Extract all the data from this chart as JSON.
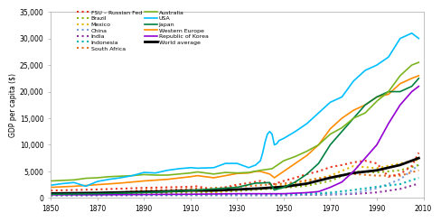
{
  "title": "",
  "ylabel": "GDP per capita ($)",
  "xlabel": "",
  "xlim": [
    1850,
    2010
  ],
  "ylim": [
    0,
    35000
  ],
  "yticks": [
    0,
    5000,
    10000,
    15000,
    20000,
    25000,
    30000,
    35000
  ],
  "xticks": [
    1850,
    1870,
    1890,
    1910,
    1930,
    1950,
    1970,
    1990,
    2010
  ],
  "background_color": "#ffffff",
  "series": {
    "Australia": {
      "color": "#7ab520",
      "style": "solid",
      "lw": 1.2,
      "years": [
        1850,
        1855,
        1860,
        1865,
        1870,
        1875,
        1880,
        1885,
        1890,
        1895,
        1900,
        1905,
        1910,
        1913,
        1920,
        1925,
        1930,
        1935,
        1940,
        1945,
        1950,
        1955,
        1960,
        1965,
        1970,
        1975,
        1980,
        1985,
        1990,
        1995,
        2000,
        2005,
        2008
      ],
      "values": [
        3200,
        3300,
        3400,
        3700,
        3800,
        4000,
        4100,
        4200,
        4400,
        4300,
        4300,
        4500,
        4700,
        4900,
        4500,
        4800,
        4700,
        4800,
        5200,
        5500,
        7000,
        7800,
        8800,
        10000,
        12000,
        13200,
        15000,
        16000,
        18200,
        20000,
        23000,
        25000,
        25500
      ]
    },
    "USA": {
      "color": "#00bfff",
      "style": "solid",
      "lw": 1.2,
      "years": [
        1850,
        1855,
        1860,
        1865,
        1870,
        1875,
        1880,
        1885,
        1890,
        1895,
        1900,
        1905,
        1910,
        1913,
        1920,
        1925,
        1930,
        1935,
        1938,
        1940,
        1941,
        1942,
        1943,
        1944,
        1945,
        1946,
        1947,
        1948,
        1950,
        1955,
        1960,
        1965,
        1970,
        1975,
        1980,
        1985,
        1990,
        1995,
        2000,
        2005,
        2008
      ],
      "values": [
        2400,
        2700,
        2900,
        2200,
        3100,
        3500,
        3800,
        4200,
        4800,
        4700,
        5200,
        5500,
        5700,
        5600,
        5700,
        6500,
        6500,
        5700,
        6200,
        7000,
        8500,
        10500,
        12000,
        12500,
        12000,
        10000,
        10200,
        10800,
        11200,
        12500,
        14000,
        16000,
        18000,
        19000,
        22000,
        24000,
        25000,
        26500,
        30000,
        31000,
        30000
      ]
    },
    "Japan": {
      "color": "#008040",
      "style": "solid",
      "lw": 1.2,
      "years": [
        1850,
        1860,
        1870,
        1880,
        1890,
        1900,
        1910,
        1920,
        1930,
        1938,
        1940,
        1944,
        1946,
        1950,
        1955,
        1960,
        1965,
        1970,
        1975,
        1980,
        1985,
        1990,
        1995,
        2000,
        2005,
        2008
      ],
      "values": [
        700,
        750,
        800,
        900,
        1000,
        1200,
        1400,
        1700,
        2000,
        2800,
        2800,
        2900,
        1500,
        2000,
        3000,
        4500,
        6500,
        10000,
        12500,
        15000,
        17500,
        19000,
        20000,
        20000,
        21000,
        22500
      ]
    },
    "Western Europe": {
      "color": "#ff8c00",
      "style": "solid",
      "lw": 1.2,
      "years": [
        1850,
        1860,
        1870,
        1880,
        1890,
        1900,
        1910,
        1913,
        1920,
        1925,
        1930,
        1935,
        1938,
        1940,
        1944,
        1946,
        1950,
        1955,
        1960,
        1965,
        1970,
        1975,
        1980,
        1985,
        1990,
        1995,
        2000,
        2005,
        2008
      ],
      "values": [
        2000,
        2200,
        2500,
        2800,
        3200,
        3500,
        4000,
        4200,
        3800,
        4200,
        4600,
        4700,
        5000,
        5000,
        4500,
        3800,
        5000,
        6500,
        8000,
        10000,
        13000,
        15000,
        16500,
        17500,
        19000,
        19500,
        21500,
        22500,
        23000
      ]
    },
    "Republic of Korea": {
      "color": "#9400d3",
      "style": "solid",
      "lw": 1.2,
      "years": [
        1850,
        1870,
        1890,
        1910,
        1930,
        1950,
        1960,
        1965,
        1970,
        1975,
        1980,
        1985,
        1990,
        1995,
        2000,
        2005,
        2008
      ],
      "values": [
        600,
        600,
        650,
        700,
        800,
        800,
        1000,
        1200,
        2000,
        3000,
        5000,
        7500,
        10000,
        14000,
        17500,
        20000,
        21000
      ]
    },
    "World average": {
      "color": "#000000",
      "style": "solid",
      "lw": 2.0,
      "years": [
        1850,
        1860,
        1870,
        1880,
        1890,
        1900,
        1910,
        1920,
        1930,
        1940,
        1950,
        1960,
        1970,
        1980,
        1990,
        2000,
        2008
      ],
      "values": [
        850,
        900,
        950,
        1050,
        1150,
        1250,
        1400,
        1400,
        1600,
        1800,
        2100,
        2700,
        3800,
        4700,
        5200,
        6200,
        7500
      ]
    },
    "FSU - Russian Fed": {
      "color": "#e8341c",
      "style": "dotted",
      "lw": 1.5,
      "years": [
        1850,
        1860,
        1870,
        1880,
        1890,
        1900,
        1910,
        1913,
        1920,
        1925,
        1930,
        1935,
        1940,
        1945,
        1950,
        1955,
        1960,
        1965,
        1970,
        1975,
        1980,
        1985,
        1990,
        1995,
        2000,
        2005,
        2008
      ],
      "values": [
        1400,
        1500,
        1600,
        1750,
        1900,
        2000,
        2100,
        2200,
        1500,
        2000,
        2500,
        2800,
        3200,
        2500,
        3200,
        3800,
        4500,
        5000,
        5800,
        6200,
        6700,
        7000,
        6500,
        4000,
        4500,
        6000,
        8500
      ]
    },
    "Brazil": {
      "color": "#8db510",
      "style": "dotted",
      "lw": 1.5,
      "years": [
        1850,
        1860,
        1870,
        1880,
        1890,
        1900,
        1910,
        1920,
        1930,
        1940,
        1950,
        1960,
        1970,
        1980,
        1990,
        2000,
        2008
      ],
      "values": [
        650,
        700,
        750,
        800,
        850,
        900,
        1000,
        1100,
        1300,
        1600,
        1900,
        2300,
        3200,
        5000,
        4800,
        5200,
        6200
      ]
    },
    "Mexico": {
      "color": "#e8b800",
      "style": "dotted",
      "lw": 1.5,
      "years": [
        1850,
        1860,
        1870,
        1880,
        1890,
        1900,
        1910,
        1920,
        1930,
        1940,
        1950,
        1960,
        1970,
        1980,
        1990,
        2000,
        2008
      ],
      "values": [
        800,
        850,
        900,
        1000,
        1100,
        1300,
        1400,
        1100,
        1500,
        1800,
        2400,
        3200,
        4200,
        6000,
        5600,
        6500,
        7200
      ]
    },
    "China": {
      "color": "#7b9cdc",
      "style": "dotted",
      "lw": 1.5,
      "years": [
        1850,
        1860,
        1870,
        1880,
        1890,
        1900,
        1910,
        1920,
        1930,
        1940,
        1950,
        1960,
        1970,
        1980,
        1990,
        2000,
        2008
      ],
      "values": [
        600,
        580,
        570,
        560,
        560,
        560,
        530,
        530,
        500,
        500,
        480,
        600,
        700,
        900,
        1800,
        3500,
        6200
      ]
    },
    "India": {
      "color": "#9030a0",
      "style": "dotted",
      "lw": 1.5,
      "years": [
        1850,
        1860,
        1870,
        1880,
        1890,
        1900,
        1910,
        1920,
        1930,
        1940,
        1950,
        1960,
        1970,
        1980,
        1990,
        2000,
        2008
      ],
      "values": [
        500,
        500,
        500,
        510,
        520,
        520,
        530,
        530,
        540,
        540,
        550,
        580,
        650,
        750,
        1050,
        1700,
        2700
      ]
    },
    "Indonesia": {
      "color": "#00b0b0",
      "style": "dotted",
      "lw": 1.5,
      "years": [
        1850,
        1860,
        1870,
        1880,
        1890,
        1900,
        1910,
        1920,
        1930,
        1940,
        1950,
        1960,
        1970,
        1980,
        1990,
        2000,
        2008
      ],
      "values": [
        500,
        520,
        550,
        580,
        600,
        620,
        660,
        680,
        720,
        720,
        700,
        780,
        1000,
        1500,
        2100,
        2600,
        3800
      ]
    },
    "South Africa": {
      "color": "#e07020",
      "style": "dotted",
      "lw": 1.5,
      "years": [
        1850,
        1860,
        1870,
        1880,
        1890,
        1900,
        1910,
        1920,
        1930,
        1940,
        1950,
        1960,
        1970,
        1980,
        1990,
        2000,
        2008
      ],
      "values": [
        700,
        750,
        800,
        1000,
        1500,
        1500,
        1700,
        1900,
        2100,
        2400,
        2700,
        3300,
        4000,
        4500,
        4200,
        4200,
        5200
      ]
    }
  },
  "legend_left": [
    {
      "label": "FSU – Russian Fed",
      "color": "#e8341c",
      "style": "dotted"
    },
    {
      "label": "Brazil",
      "color": "#8db510",
      "style": "dotted"
    },
    {
      "label": "Mexico",
      "color": "#e8b800",
      "style": "dotted"
    },
    {
      "label": "China",
      "color": "#7b9cdc",
      "style": "dotted"
    },
    {
      "label": "India",
      "color": "#9030a0",
      "style": "dotted"
    },
    {
      "label": "Indonesia",
      "color": "#00b0b0",
      "style": "dotted"
    },
    {
      "label": "South Africa",
      "color": "#e07020",
      "style": "dotted"
    }
  ],
  "legend_right": [
    {
      "label": "Australia",
      "color": "#7ab520",
      "style": "solid"
    },
    {
      "label": "USA",
      "color": "#00bfff",
      "style": "solid"
    },
    {
      "label": "Japan",
      "color": "#008040",
      "style": "solid"
    },
    {
      "label": "Western Europe",
      "color": "#ff8c00",
      "style": "solid"
    },
    {
      "label": "Republic of Korea",
      "color": "#9400d3",
      "style": "solid"
    },
    {
      "label": "World average",
      "color": "#000000",
      "style": "solid"
    }
  ]
}
